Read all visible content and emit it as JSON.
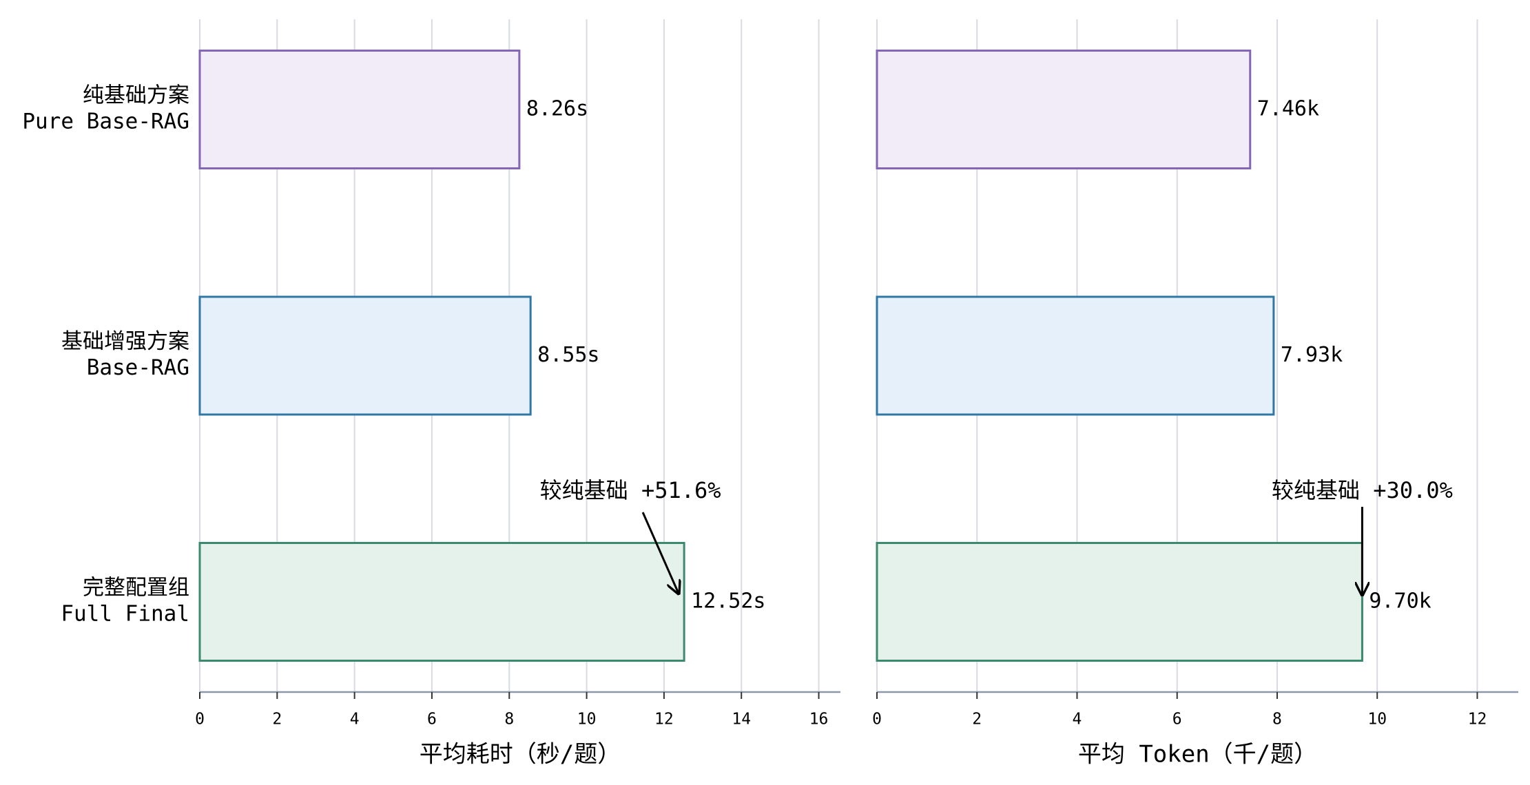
{
  "chart_data": [
    {
      "type": "barh",
      "categories": [
        [
          "纯基础方案",
          "Pure Base-RAG"
        ],
        [
          "基础增强方案",
          "Base-RAG"
        ],
        [
          "完整配置组",
          "Full Final"
        ]
      ],
      "values": [
        8.26,
        8.55,
        12.52
      ],
      "value_labels": [
        "8.26s",
        "8.55s",
        "12.52s"
      ],
      "colors": [
        "#f2ecf9",
        "#e6f0fa",
        "#e5f2ec"
      ],
      "edge_colors": [
        "#8366b5",
        "#2f78a6",
        "#3a8a6e"
      ],
      "xlim": [
        0,
        16.56
      ],
      "xticks": [
        0,
        2,
        4,
        6,
        8,
        10,
        12,
        14,
        16
      ],
      "xlabel": "平均耗时（秒/题）",
      "annotation": "较纯基础 +51.6%",
      "grid": true
    },
    {
      "type": "barh",
      "values": [
        7.46,
        7.93,
        9.7
      ],
      "value_labels": [
        "7.46k",
        "7.93k",
        "9.70k"
      ],
      "colors": [
        "#f2ecf9",
        "#e6f0fa",
        "#e5f2ec"
      ],
      "edge_colors": [
        "#8366b5",
        "#2f78a6",
        "#3a8a6e"
      ],
      "xlim": [
        0,
        12.82
      ],
      "xticks": [
        0,
        2,
        4,
        6,
        8,
        10,
        12
      ],
      "xlabel": "平均 Token（千/题）",
      "annotation": "较纯基础 +30.0%",
      "grid": true
    }
  ]
}
